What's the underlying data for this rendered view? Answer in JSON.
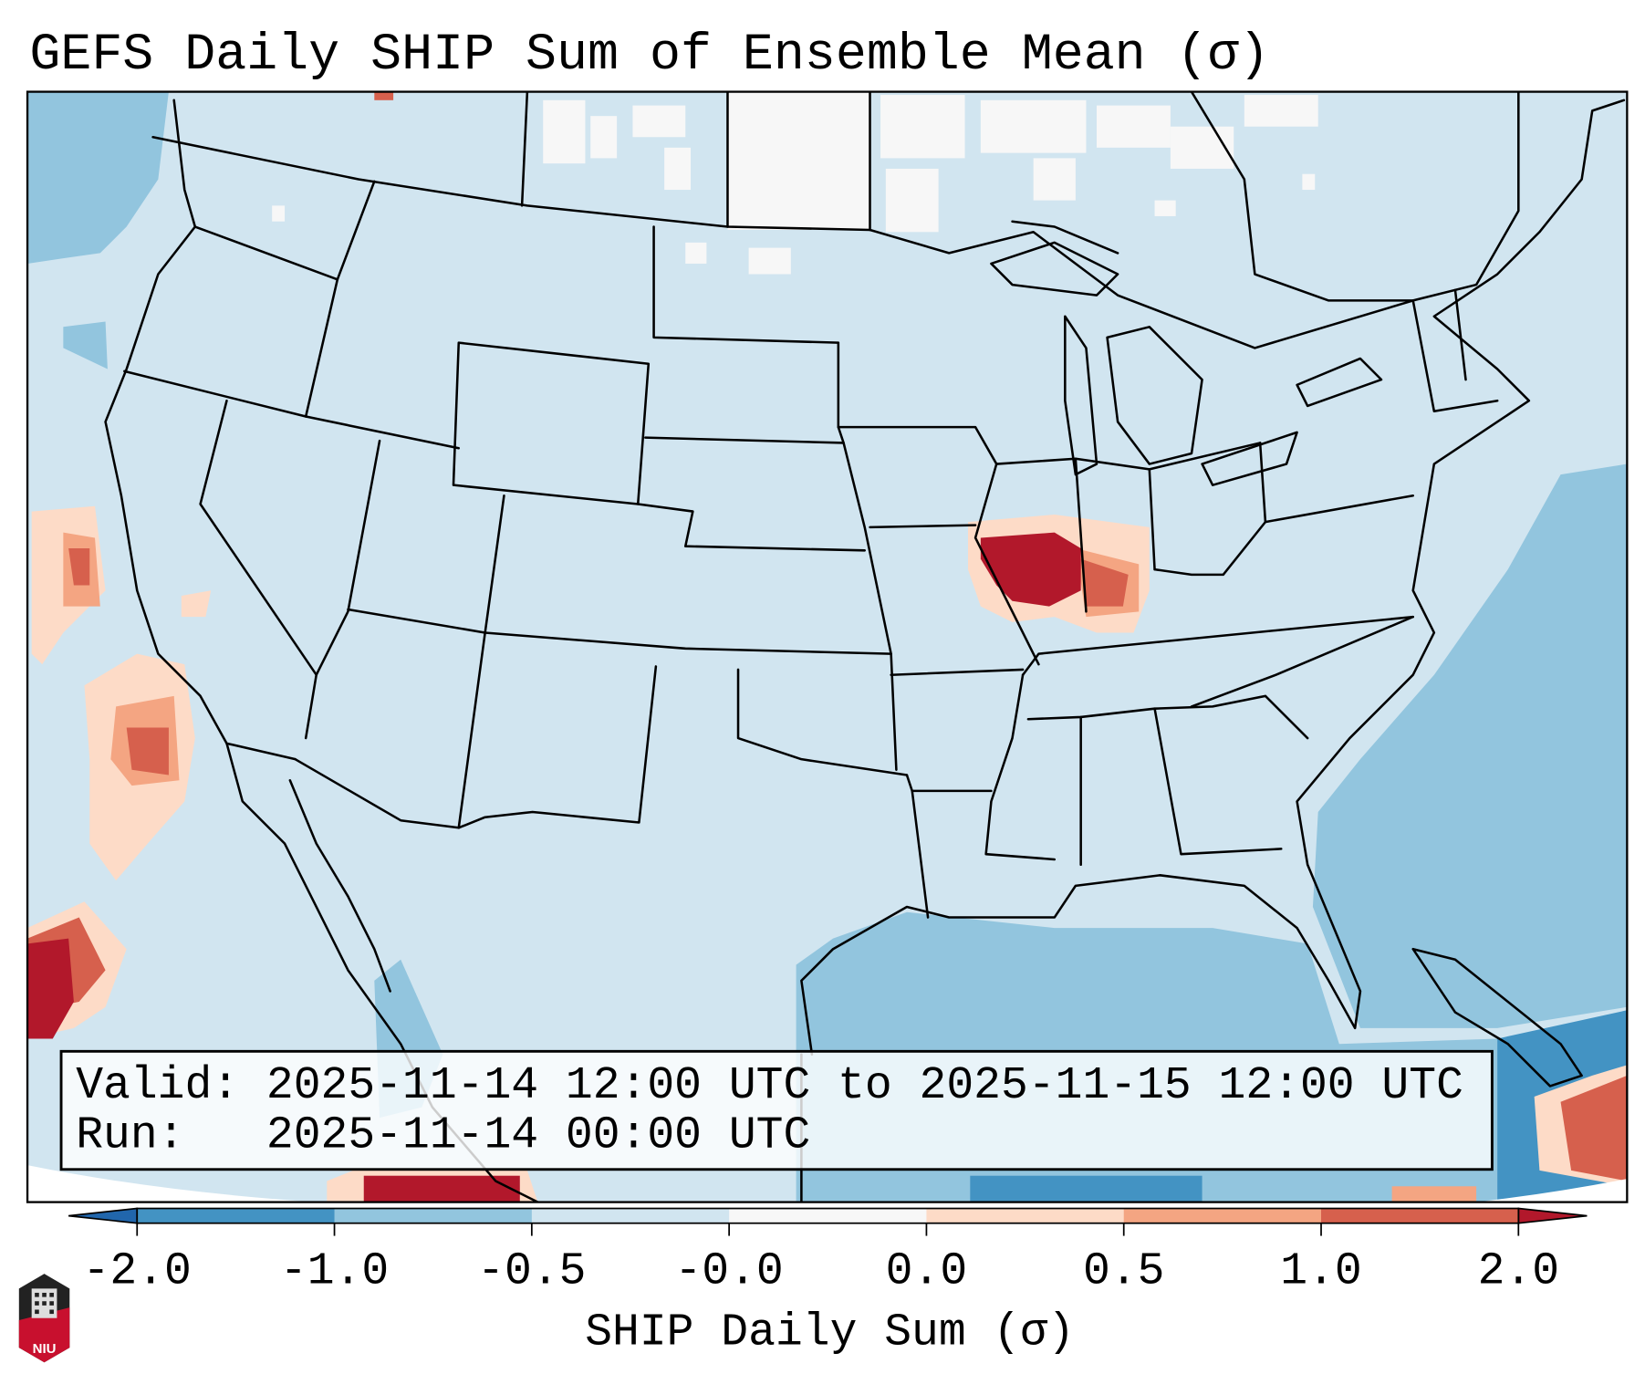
{
  "title": "GEFS Daily SHIP Sum of Ensemble Mean (σ)",
  "info_box": {
    "valid_line": "Valid: 2025-11-14 12:00 UTC to 2025-11-15 12:00 UTC",
    "run_line": "Run:   2025-11-14 00:00 UTC"
  },
  "colorbar": {
    "label": "SHIP Daily Sum (σ)",
    "ticks": [
      "-2.0",
      "-1.0",
      "-0.5",
      "-0.0",
      "0.0",
      "0.5",
      "1.0",
      "2.0"
    ],
    "colors": [
      "#4393c3",
      "#92c5de",
      "#d1e5f0",
      "#f7f7f7",
      "#fddbc7",
      "#f4a582",
      "#d6604d"
    ],
    "under_color": "#2166ac",
    "over_color": "#b2182b"
  },
  "logo": {
    "text": "NIU"
  }
}
